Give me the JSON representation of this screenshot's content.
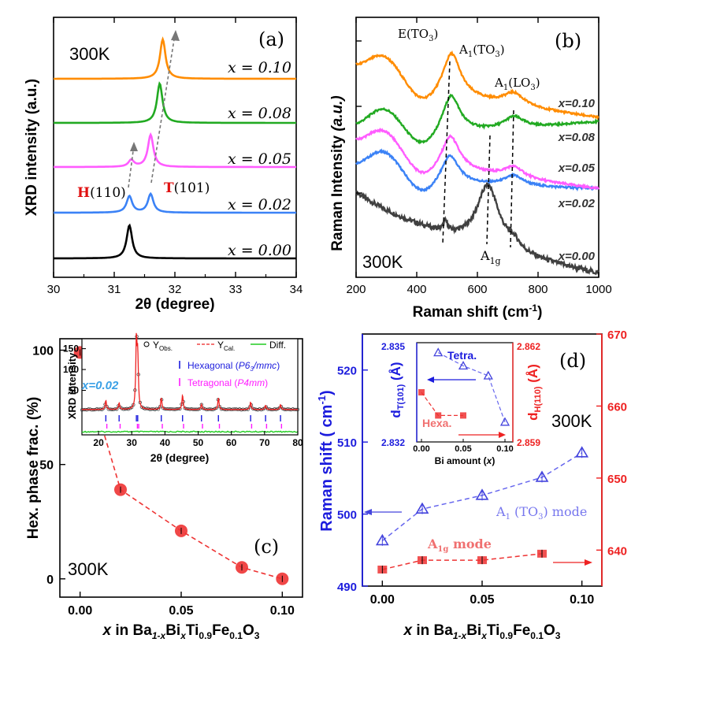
{
  "chart_data": [
    {
      "panel": "(a)",
      "type": "line",
      "temperature": "300K",
      "xlabel": "2θ (degree)",
      "ylabel": "XRD intensity (a.u.)",
      "xlim": [
        30,
        34
      ],
      "xticks": [
        "30",
        "31",
        "32",
        "33",
        "34"
      ],
      "peak_labels": [
        {
          "letter": "H",
          "hkl": "(110)"
        },
        {
          "letter": "T",
          "hkl": "(101)"
        }
      ],
      "series": [
        {
          "name": "x = 0.00",
          "color": "#000000",
          "peaks": [
            {
              "x": 31.25,
              "h": 1.0
            }
          ]
        },
        {
          "name": "x = 0.02",
          "color": "#3b82f6",
          "peaks": [
            {
              "x": 31.25,
              "h": 0.55
            },
            {
              "x": 31.6,
              "h": 0.62
            }
          ]
        },
        {
          "name": "x = 0.05",
          "color": "#ff5cff",
          "peaks": [
            {
              "x": 31.28,
              "h": 0.18
            },
            {
              "x": 31.6,
              "h": 0.85
            }
          ]
        },
        {
          "name": "x = 0.08",
          "color": "#22aa22",
          "peaks": [
            {
              "x": 31.75,
              "h": 1.0
            }
          ]
        },
        {
          "name": "x = 0.10",
          "color": "#ff8c00",
          "peaks": [
            {
              "x": 31.8,
              "h": 1.0
            }
          ]
        }
      ]
    },
    {
      "panel": "(b)",
      "type": "line",
      "temperature": "300K",
      "xlabel": "Raman shift (cm-1)",
      "ylabel": "Raman Intensity (a.u.)",
      "xlim": [
        200,
        1000
      ],
      "xticks": [
        "200",
        "400",
        "600",
        "800",
        "1000"
      ],
      "mode_labels": [
        "E(TO3)",
        "A1(TO3)",
        "A1(LO3)",
        "A1g"
      ],
      "series": [
        {
          "name": "x=0.00",
          "color": "#404040"
        },
        {
          "name": "x=0.02",
          "color": "#3b82f6"
        },
        {
          "name": "x=0.05",
          "color": "#ff5cff"
        },
        {
          "name": "x=0.08",
          "color": "#22aa22"
        },
        {
          "name": "x=0.10",
          "color": "#ff8c00"
        }
      ]
    },
    {
      "panel": "(c)",
      "type": "scatter",
      "temperature": "300K",
      "xlabel_parts": [
        "x",
        " in Ba",
        "1-x",
        "Bi",
        "x",
        "Ti",
        "0.9",
        "Fe",
        "0.1",
        "O",
        "3"
      ],
      "ylabel": "Hex. phase frac. (%)",
      "xlim": [
        -0.01,
        0.11
      ],
      "ylim": [
        -8,
        105
      ],
      "xticks": [
        "0.00",
        "0.05",
        "0.10"
      ],
      "yticks": [
        "0",
        "50",
        "100"
      ],
      "x": [
        0.0,
        0.02,
        0.05,
        0.08,
        0.1
      ],
      "y": [
        99,
        39,
        21,
        5,
        0
      ],
      "color": "#ee3333",
      "inset": {
        "sample": "x=0.02",
        "xlabel": "2θ (degree)",
        "ylabel": "XRD intensity",
        "xlim": [
          15,
          80
        ],
        "xticks": [
          "20",
          "30",
          "40",
          "50",
          "60",
          "70",
          "80"
        ],
        "yticks": [
          "50",
          "100",
          "150"
        ],
        "legend": {
          "obs": "Y",
          "obs_sub": "Obs.",
          "cal": "Y",
          "cal_sub": "Cal.",
          "diff": "Diff."
        },
        "phases": [
          {
            "name": "Hexagonal",
            "group": "P6",
            "group_sub": "3",
            "group_rest": "/mmc",
            "color": "#1c1cdd"
          },
          {
            "name": "Tetragonal",
            "group": "P4mm",
            "color": "#ff1aff"
          }
        ],
        "peaks_x": [
          22.2,
          26.2,
          31.4,
          31.8,
          38.9,
          45.3,
          51.0,
          56.1,
          65.8,
          70.3,
          74.8
        ],
        "peaks_h": [
          22,
          16,
          160,
          120,
          28,
          35,
          12,
          28,
          18,
          10,
          12
        ]
      }
    },
    {
      "panel": "(d)",
      "type": "scatter",
      "temperature": "300K",
      "xlabel_parts": [
        "x",
        " in Ba",
        "1-x",
        "Bi",
        "x",
        "Ti",
        "0.9",
        "Fe",
        "0.1",
        "O",
        "3"
      ],
      "ylabel_left": "Raman shift ( cm-1)",
      "ylabel_right": "",
      "xlim": [
        -0.01,
        0.11
      ],
      "ylim_left": [
        490,
        525
      ],
      "ylim_right": [
        635,
        670
      ],
      "xticks": [
        "0.00",
        "0.05",
        "0.10"
      ],
      "yticks_left": [
        "490",
        "500",
        "510",
        "520"
      ],
      "yticks_right": [
        "640",
        "650",
        "660",
        "670"
      ],
      "series": [
        {
          "name": "A1 (TO3) mode",
          "axis": "left",
          "color": "#4444dd",
          "x": [
            0.0,
            0.02,
            0.05,
            0.08,
            0.1
          ],
          "y": [
            496.3,
            500.7,
            502.6,
            505.1,
            508.5
          ],
          "err": [
            0.7,
            0.7,
            0.7,
            0.7,
            0.7
          ]
        },
        {
          "name": "A1g mode",
          "axis": "right",
          "color": "#ee3333",
          "x": [
            0.0,
            0.02,
            0.05,
            0.08,
            0.1
          ],
          "y": [
            637.3,
            638.6,
            638.6,
            639.5,
            null
          ],
          "err": [
            0.4,
            0.4,
            0.4,
            0.4,
            0
          ]
        }
      ],
      "inset": {
        "xlabel": "Bi amount (x)",
        "xticks": [
          "0.00",
          "0.05",
          "0.10"
        ],
        "left_axis": {
          "label": "dT(101) (Å)",
          "ylim": [
            2.832,
            2.835
          ],
          "yticks": [
            "2.835",
            "2.832"
          ]
        },
        "right_axis": {
          "label": "dH(110) (Å)",
          "ylim": [
            2.859,
            2.862
          ],
          "yticks": [
            "2.862",
            "2.859"
          ]
        },
        "tetra": {
          "name": "Tetra.",
          "x": [
            0.02,
            0.05,
            0.08,
            0.1
          ],
          "y": [
            2.8347,
            2.8343,
            2.834,
            2.8326
          ],
          "color": "#4444dd"
        },
        "hexa": {
          "name": "Hexa.",
          "x": [
            0.0,
            0.02,
            0.05
          ],
          "y": [
            2.8605,
            2.8598,
            2.8598
          ],
          "color": "#ee3333"
        }
      }
    }
  ]
}
